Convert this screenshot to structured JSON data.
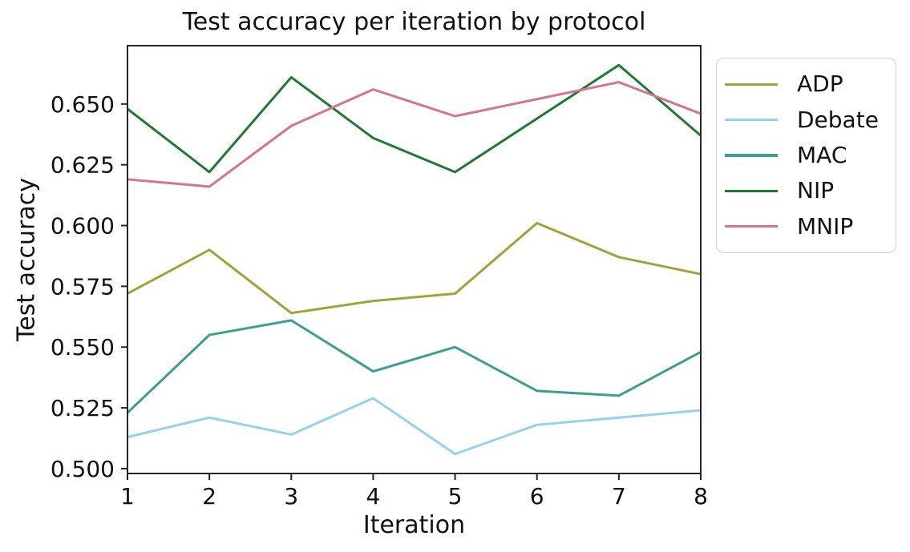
{
  "figure": {
    "title": "Test accuracy per iteration by protocol",
    "xlabel": "Iteration",
    "ylabel": "Test accuracy"
  },
  "chart_data": {
    "type": "line",
    "title": "Test accuracy per iteration by protocol",
    "xlabel": "Iteration",
    "ylabel": "Test accuracy",
    "x": [
      1,
      2,
      3,
      4,
      5,
      6,
      7,
      8
    ],
    "x_tick_labels": [
      "1",
      "2",
      "3",
      "4",
      "5",
      "6",
      "7",
      "8"
    ],
    "y_tick_values": [
      0.5,
      0.525,
      0.55,
      0.575,
      0.6,
      0.625,
      0.65
    ],
    "y_tick_labels": [
      "0.500",
      "0.525",
      "0.550",
      "0.575",
      "0.600",
      "0.625",
      "0.650"
    ],
    "xlim": [
      1,
      8
    ],
    "ylim": [
      0.498,
      0.674
    ],
    "grid": false,
    "legend_position": "outside-upper-right",
    "axis_color": "#262626",
    "text_color": "#111111",
    "series": [
      {
        "name": "ADP",
        "color": "#a3a238",
        "values": [
          0.572,
          0.59,
          0.564,
          0.569,
          0.572,
          0.601,
          0.587,
          0.58
        ]
      },
      {
        "name": "Debate",
        "color": "#97d1f0",
        "values": [
          0.513,
          0.521,
          0.514,
          0.529,
          0.506,
          0.518,
          0.521,
          0.524
        ]
      },
      {
        "name": "MAC",
        "color": "#3b9f90",
        "values": [
          0.523,
          0.555,
          0.561,
          0.54,
          0.55,
          0.532,
          0.53,
          0.548
        ]
      },
      {
        "name": "NIP",
        "color": "#1e7b2f",
        "values": [
          0.648,
          0.622,
          0.661,
          0.636,
          0.622,
          0.644,
          0.666,
          0.637
        ]
      },
      {
        "name": "MNIP",
        "color": "#d5758d",
        "values": [
          0.619,
          0.616,
          0.641,
          0.656,
          0.645,
          0.652,
          0.659,
          0.646
        ]
      }
    ]
  }
}
